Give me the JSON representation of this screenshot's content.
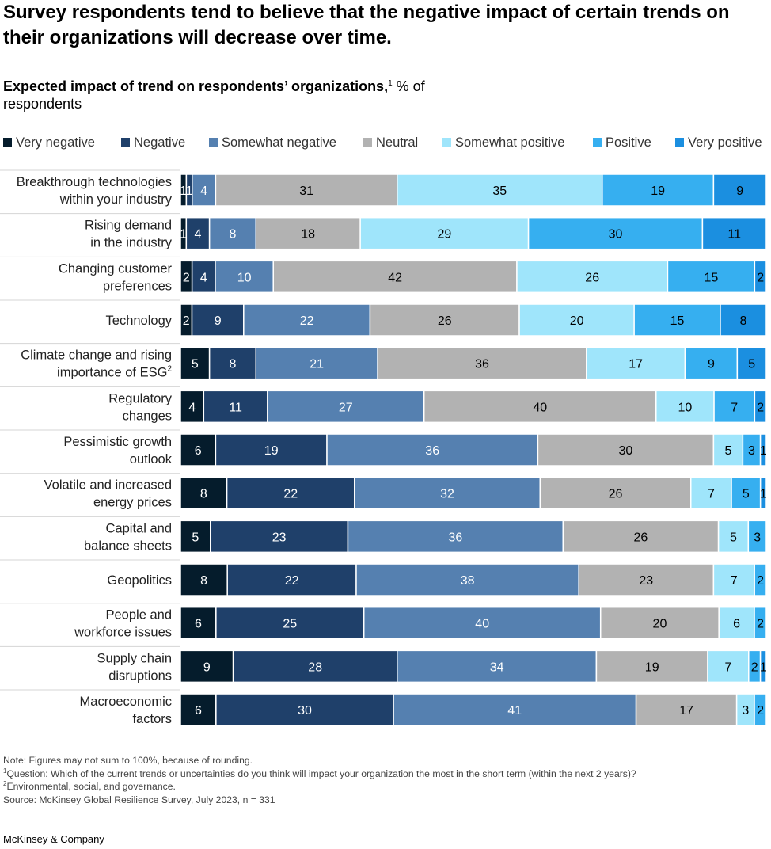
{
  "headline": "Survey respondents tend to believe that the negative impact of certain trends on their organizations will decrease over time.",
  "subtitle": {
    "bold_part": "Expected impact of trend on respondents’ organizations,",
    "footnote_marker": "1",
    "normal_part": " % of respondents"
  },
  "footnotes": {
    "note": "Note: Figures may not sum to 100%, because of rounding.",
    "fn1_marker": "1",
    "fn1": "Question: Which of the current trends or uncertainties do you think will impact your organization the most in the short term (within the next 2 years)?",
    "fn2_marker": "2",
    "fn2": "Environmental, social, and governance.",
    "source": " Source: McKinsey Global Resilience Survey, July 2023, n = 331"
  },
  "brand": "McKinsey & Company",
  "chart_data": {
    "type": "bar",
    "orientation": "horizontal",
    "stacked": true,
    "xlim": [
      0,
      100
    ],
    "grid": false,
    "legend_position": "top",
    "categories": [
      {
        "lines": [
          "Breakthrough technologies",
          "within your industry"
        ]
      },
      {
        "lines": [
          "Rising demand",
          "in the industry"
        ]
      },
      {
        "lines": [
          "Changing customer",
          "preferences"
        ]
      },
      {
        "lines": [
          "Technology"
        ]
      },
      {
        "lines": [
          "Climate change and rising",
          "importance of ESG"
        ],
        "footnote": "2"
      },
      {
        "lines": [
          "Regulatory",
          "changes"
        ]
      },
      {
        "lines": [
          "Pessimistic growth",
          "outlook"
        ]
      },
      {
        "lines": [
          "Volatile and increased",
          "energy prices"
        ]
      },
      {
        "lines": [
          "Capital and",
          "balance sheets"
        ]
      },
      {
        "lines": [
          "Geopolitics"
        ]
      },
      {
        "lines": [
          "People and",
          "workforce issues"
        ]
      },
      {
        "lines": [
          "Supply chain",
          "disruptions"
        ]
      },
      {
        "lines": [
          "Macroeconomic",
          "factors"
        ]
      }
    ],
    "series": [
      {
        "name": "Very negative",
        "color": "#051c2c",
        "label_color": "#ffffff",
        "values": [
          1,
          1,
          2,
          2,
          5,
          4,
          6,
          8,
          5,
          8,
          6,
          9,
          6
        ]
      },
      {
        "name": "Negative",
        "color": "#1f406a",
        "label_color": "#ffffff",
        "values": [
          1,
          4,
          4,
          9,
          8,
          11,
          19,
          22,
          23,
          22,
          25,
          28,
          30
        ]
      },
      {
        "name": "Somewhat negative",
        "color": "#5580b0",
        "label_color": "#ffffff",
        "values": [
          4,
          8,
          10,
          22,
          21,
          27,
          36,
          32,
          36,
          38,
          40,
          34,
          41
        ]
      },
      {
        "name": "Neutral",
        "color": "#b2b2b2",
        "label_color": "#000000",
        "values": [
          31,
          18,
          42,
          26,
          36,
          40,
          30,
          26,
          26,
          23,
          20,
          19,
          17
        ]
      },
      {
        "name": "Somewhat positive",
        "color": "#9fe5fb",
        "label_color": "#000000",
        "values": [
          35,
          29,
          26,
          20,
          17,
          10,
          5,
          7,
          5,
          7,
          6,
          7,
          3
        ]
      },
      {
        "name": "Positive",
        "color": "#36aff0",
        "label_color": "#000000",
        "values": [
          19,
          30,
          15,
          15,
          9,
          7,
          3,
          5,
          3,
          2,
          2,
          2,
          2
        ]
      },
      {
        "name": "Very positive",
        "color": "#1b8fe0",
        "label_color": "#000000",
        "values": [
          9,
          11,
          2,
          8,
          5,
          2,
          1,
          1,
          0,
          0,
          0,
          1,
          0
        ]
      }
    ]
  }
}
